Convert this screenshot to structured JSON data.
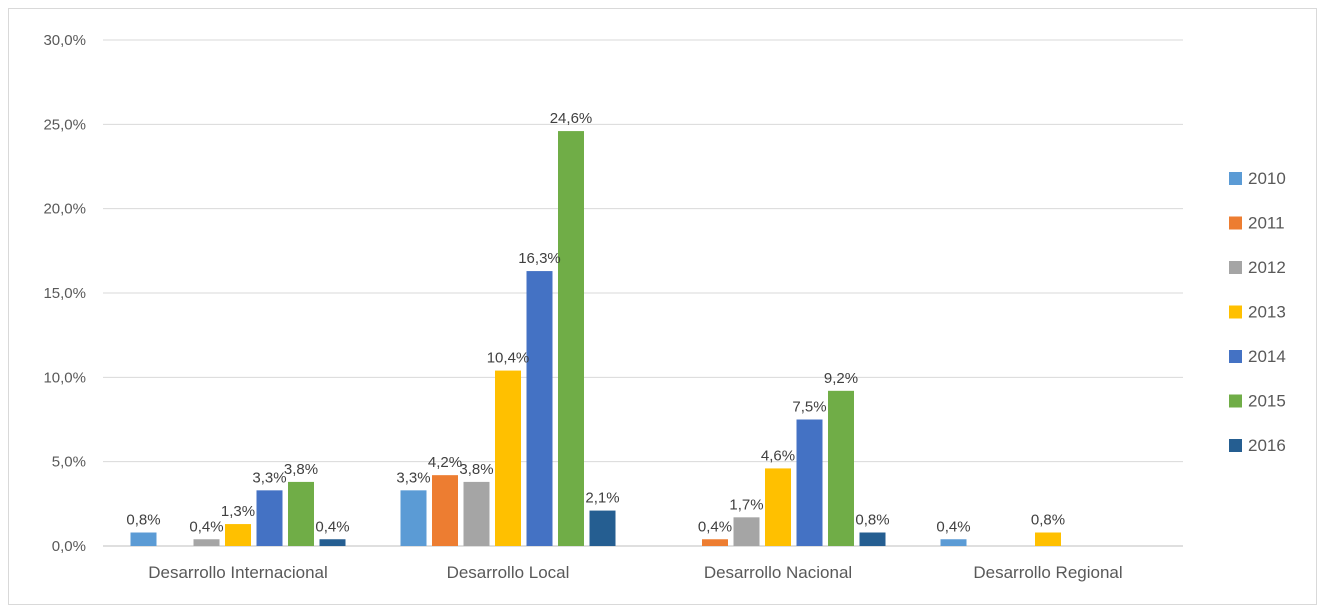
{
  "chart_data": {
    "type": "bar",
    "categories": [
      "Desarrollo Internacional",
      "Desarrollo Local",
      "Desarrollo Nacional",
      "Desarrollo Regional"
    ],
    "ylim": [
      0,
      30
    ],
    "yticks": [
      "0,0%",
      "5,0%",
      "10,0%",
      "15,0%",
      "20,0%",
      "25,0%",
      "30,0%"
    ],
    "grid": true,
    "legend_position": "right",
    "series": [
      {
        "name": "2010",
        "color": "#5B9BD5",
        "values": [
          0.8,
          3.3,
          null,
          0.4
        ],
        "labels": [
          "0,8%",
          "3,3%",
          "",
          "0,4%"
        ]
      },
      {
        "name": "2011",
        "color": "#ED7D31",
        "values": [
          null,
          4.2,
          0.4,
          null
        ],
        "labels": [
          "",
          "4,2%",
          "0,4%",
          ""
        ]
      },
      {
        "name": "2012",
        "color": "#A5A5A5",
        "values": [
          0.4,
          3.8,
          1.7,
          null
        ],
        "labels": [
          "0,4%",
          "3,8%",
          "1,7%",
          ""
        ]
      },
      {
        "name": "2013",
        "color": "#FFC000",
        "values": [
          1.3,
          10.4,
          4.6,
          0.8
        ],
        "labels": [
          "1,3%",
          "10,4%",
          "4,6%",
          "0,8%"
        ]
      },
      {
        "name": "2014",
        "color": "#4472C4",
        "values": [
          3.3,
          16.3,
          7.5,
          null
        ],
        "labels": [
          "3,3%",
          "16,3%",
          "7,5%",
          ""
        ]
      },
      {
        "name": "2015",
        "color": "#70AD47",
        "values": [
          3.8,
          24.6,
          9.2,
          null
        ],
        "labels": [
          "3,8%",
          "24,6%",
          "9,2%",
          ""
        ]
      },
      {
        "name": "2016",
        "color": "#255E91",
        "values": [
          0.4,
          2.1,
          0.8,
          null
        ],
        "labels": [
          "0,4%",
          "2,1%",
          "0,8%",
          ""
        ]
      }
    ]
  }
}
